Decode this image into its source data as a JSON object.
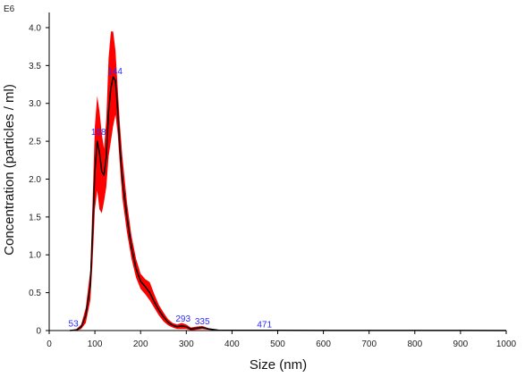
{
  "chart_data": {
    "type": "line",
    "xlabel": "Size (nm)",
    "ylabel": "Concentration (particles / ml)",
    "y_exponent_label": "E6",
    "xlim": [
      0,
      1000
    ],
    "ylim": [
      0,
      4.2
    ],
    "x_ticks": [
      0,
      100,
      200,
      300,
      400,
      500,
      600,
      700,
      800,
      900,
      1000
    ],
    "x_tick_labels": [
      "0",
      "100",
      "200",
      "300",
      "400",
      "500",
      "600",
      "700",
      "800",
      "900",
      "1000"
    ],
    "y_ticks": [
      0,
      0.5,
      1.0,
      1.5,
      2.0,
      2.5,
      3.0,
      3.5,
      4.0
    ],
    "y_tick_labels": [
      "0",
      "0.5",
      "1.0",
      "1.5",
      "2.0",
      "2.5",
      "3.0",
      "3.5",
      "4.0"
    ],
    "grid": false,
    "colors": {
      "mean_line": "#000000",
      "error_band": "#ff0000",
      "peak_labels": "#2b2bff"
    },
    "series": [
      {
        "x": [
          45,
          60,
          70,
          80,
          90,
          95,
          100,
          105,
          110,
          115,
          120,
          125,
          130,
          135,
          140,
          145,
          150,
          155,
          160,
          170,
          180,
          190,
          200,
          210,
          220,
          230,
          240,
          250,
          260,
          270,
          280,
          290,
          300,
          310,
          320,
          335,
          350,
          370,
          400,
          450,
          471,
          500,
          600,
          700,
          800,
          900,
          1000
        ],
        "y": [
          0,
          0.01,
          0.05,
          0.2,
          0.6,
          1.3,
          2.1,
          2.5,
          2.35,
          2.1,
          2.05,
          2.3,
          2.9,
          3.2,
          3.35,
          3.3,
          2.9,
          2.4,
          2.0,
          1.5,
          1.1,
          0.82,
          0.65,
          0.58,
          0.5,
          0.38,
          0.27,
          0.18,
          0.11,
          0.07,
          0.05,
          0.06,
          0.05,
          0.02,
          0.03,
          0.04,
          0.02,
          0.005,
          0.002,
          0.002,
          0.003,
          0.002,
          0.001,
          0.001,
          0.001,
          0.001,
          0.0
        ],
        "y_upper": [
          0,
          0.02,
          0.08,
          0.3,
          0.8,
          1.7,
          2.7,
          3.1,
          2.9,
          2.6,
          2.4,
          2.8,
          3.6,
          3.95,
          3.95,
          3.7,
          3.2,
          2.7,
          2.3,
          1.7,
          1.25,
          0.95,
          0.75,
          0.68,
          0.64,
          0.48,
          0.34,
          0.24,
          0.15,
          0.1,
          0.08,
          0.1,
          0.08,
          0.04,
          0.05,
          0.06,
          0.03,
          0.01,
          0.004,
          0.004,
          0.005,
          0.004,
          0.002,
          0.002,
          0.002,
          0.002,
          0.0
        ],
        "y_lower": [
          0,
          0.0,
          0.02,
          0.1,
          0.4,
          0.9,
          1.6,
          1.85,
          1.6,
          1.55,
          1.7,
          1.9,
          2.3,
          2.5,
          2.7,
          2.85,
          2.6,
          2.15,
          1.75,
          1.3,
          0.95,
          0.7,
          0.55,
          0.48,
          0.4,
          0.3,
          0.2,
          0.12,
          0.07,
          0.04,
          0.02,
          0.02,
          0.02,
          0.005,
          0.01,
          0.02,
          0.01,
          0.001,
          0.0,
          0.0,
          0.001,
          0.0,
          0.0,
          0.0,
          0.0,
          0.0,
          0.0
        ]
      }
    ],
    "peak_labels": [
      {
        "text": "53",
        "x": 53,
        "y": 0.02
      },
      {
        "text": "108",
        "x": 108,
        "y": 2.55
      },
      {
        "text": "144",
        "x": 144,
        "y": 3.35
      },
      {
        "text": "293",
        "x": 293,
        "y": 0.08
      },
      {
        "text": "335",
        "x": 335,
        "y": 0.05
      },
      {
        "text": "471",
        "x": 471,
        "y": 0.003
      }
    ]
  }
}
